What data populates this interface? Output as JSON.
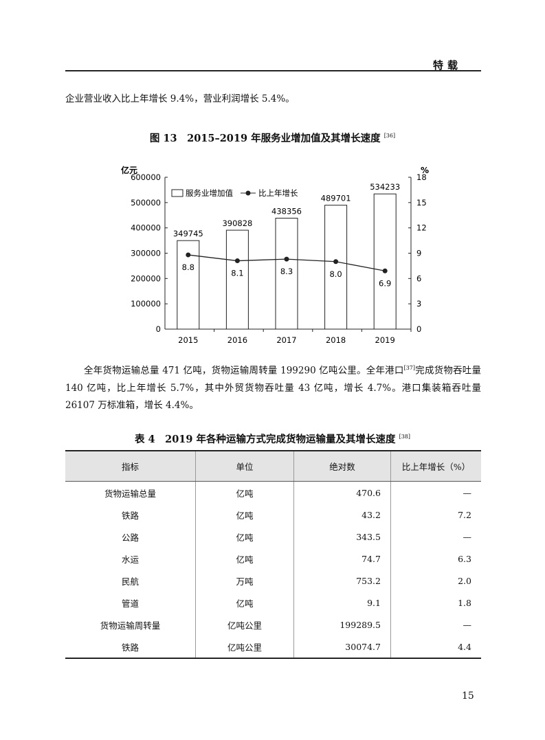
{
  "header": {
    "section": "特载"
  },
  "paragraph1": "企业营业收入比上年增长 9.4%，营业利润增长 5.4%。",
  "figure": {
    "title": "图 13　2015–2019 年服务业增加值及其增长速度",
    "ref": "[36]"
  },
  "chart_data": {
    "type": "bar+line",
    "categories": [
      "2015",
      "2016",
      "2017",
      "2018",
      "2019"
    ],
    "series": [
      {
        "name": "服务业增加值",
        "type": "bar",
        "axis": "left",
        "values": [
          349745,
          390828,
          438356,
          489701,
          534233
        ]
      },
      {
        "name": "比上年增长",
        "type": "line",
        "axis": "right",
        "values": [
          8.8,
          8.1,
          8.3,
          8.0,
          6.9
        ]
      }
    ],
    "y_left": {
      "unit": "亿元",
      "range": [
        0,
        600000
      ],
      "ticks": [
        0,
        100000,
        200000,
        300000,
        400000,
        500000,
        600000
      ]
    },
    "y_right": {
      "unit": "%",
      "range": [
        0,
        18
      ],
      "ticks": [
        0,
        3,
        6,
        9,
        12,
        15,
        18
      ]
    },
    "legend_position": "top-left",
    "grid": false,
    "colors": {
      "bar_fill": "#ffffff",
      "bar_stroke": "#222222",
      "line": "#222222"
    }
  },
  "paragraph2": {
    "p1": "全年货物运输总量 471 亿吨，货物运输周转量 199290 亿吨公里。全年港口",
    "ref": "[37]",
    "p2": "完成货物吞吐量 140 亿吨，比上年增长 5.7%，其中外贸货物吞吐量 43 亿吨，增长 4.7%。港口集装箱吞吐量 26107 万标准箱，增长 4.4%。"
  },
  "table": {
    "title": "表 4　2019 年各种运输方式完成货物运输量及其增长速度",
    "ref": "[38]",
    "headers": [
      "指标",
      "单位",
      "绝对数",
      "比上年增长（%）"
    ],
    "rows": [
      [
        "货物运输总量",
        "亿吨",
        "470.6",
        "—"
      ],
      [
        "铁路",
        "亿吨",
        "43.2",
        "7.2"
      ],
      [
        "公路",
        "亿吨",
        "343.5",
        "—"
      ],
      [
        "水运",
        "亿吨",
        "74.7",
        "6.3"
      ],
      [
        "民航",
        "万吨",
        "753.2",
        "2.0"
      ],
      [
        "管道",
        "亿吨",
        "9.1",
        "1.8"
      ],
      [
        "货物运输周转量",
        "亿吨公里",
        "199289.5",
        "—"
      ],
      [
        "铁路",
        "亿吨公里",
        "30074.7",
        "4.4"
      ]
    ]
  },
  "page_number": "15"
}
